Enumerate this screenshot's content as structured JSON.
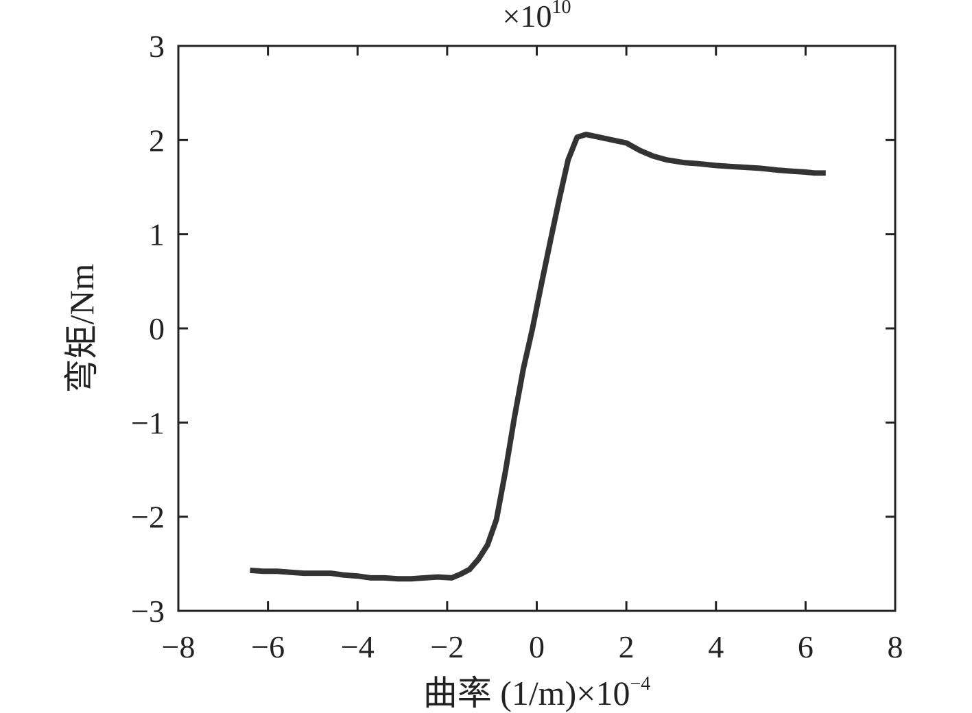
{
  "chart_data": {
    "type": "line",
    "title": "",
    "xlabel": "曲率 (1/m)×10",
    "xlabel_exponent": "−4",
    "ylabel": "弯矩/Nm",
    "y_multiplier_prefix": "×10",
    "y_multiplier_exponent": "10",
    "xlim": [
      -8,
      8
    ],
    "ylim": [
      -3,
      3
    ],
    "x_ticks": [
      -8,
      -6,
      -4,
      -2,
      0,
      2,
      4,
      6,
      8
    ],
    "x_tick_labels": [
      "−8",
      "−6",
      "−4",
      "−2",
      "0",
      "2",
      "4",
      "6",
      "8"
    ],
    "y_ticks": [
      -3,
      -2,
      -1,
      0,
      1,
      2,
      3
    ],
    "y_tick_labels": [
      "−3",
      "−2",
      "−1",
      "0",
      "1",
      "2",
      "3"
    ],
    "grid": false,
    "line_color": "#333333",
    "series": [
      {
        "x": [
          -6.4,
          -6.1,
          -5.8,
          -5.5,
          -5.2,
          -4.9,
          -4.6,
          -4.3,
          -4.0,
          -3.7,
          -3.4,
          -3.1,
          -2.8,
          -2.5,
          -2.2,
          -1.9,
          -1.7,
          -1.5,
          -1.3,
          -1.1,
          -0.9,
          -0.7,
          -0.5,
          -0.3,
          -0.1,
          0.1,
          0.3,
          0.5,
          0.7,
          0.9,
          1.1,
          1.3,
          1.6,
          2.0,
          2.3,
          2.6,
          2.9,
          3.3,
          3.6,
          4.0,
          4.3,
          4.7,
          5.0,
          5.4,
          5.7,
          6.0,
          6.2,
          6.45
        ],
        "y": [
          -2.57,
          -2.58,
          -2.58,
          -2.59,
          -2.6,
          -2.6,
          -2.6,
          -2.62,
          -2.63,
          -2.65,
          -2.65,
          -2.66,
          -2.66,
          -2.65,
          -2.64,
          -2.65,
          -2.61,
          -2.56,
          -2.45,
          -2.3,
          -2.03,
          -1.52,
          -0.95,
          -0.43,
          -0.01,
          0.46,
          0.92,
          1.37,
          1.79,
          2.03,
          2.06,
          2.04,
          2.01,
          1.97,
          1.89,
          1.83,
          1.79,
          1.76,
          1.75,
          1.73,
          1.72,
          1.71,
          1.7,
          1.68,
          1.67,
          1.66,
          1.65,
          1.65
        ]
      }
    ]
  }
}
